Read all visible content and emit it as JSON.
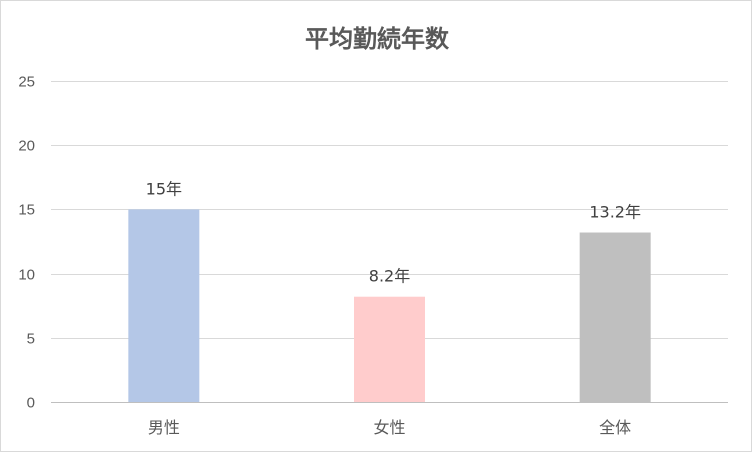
{
  "chart_data": {
    "type": "bar",
    "title": "平均勤続年数",
    "xlabel": "",
    "ylabel": "",
    "categories": [
      "男性",
      "女性",
      "全体"
    ],
    "values": [
      15,
      8.2,
      13.2
    ],
    "data_labels": [
      "15年",
      "8.2年",
      "13.2年"
    ],
    "bar_colors": [
      "#b4c7e7",
      "#ffcccc",
      "#bfbfbf"
    ],
    "ylim": [
      0,
      25
    ],
    "yticks": [
      0,
      5,
      10,
      15,
      20,
      25
    ],
    "grid": true,
    "legend": "none"
  }
}
